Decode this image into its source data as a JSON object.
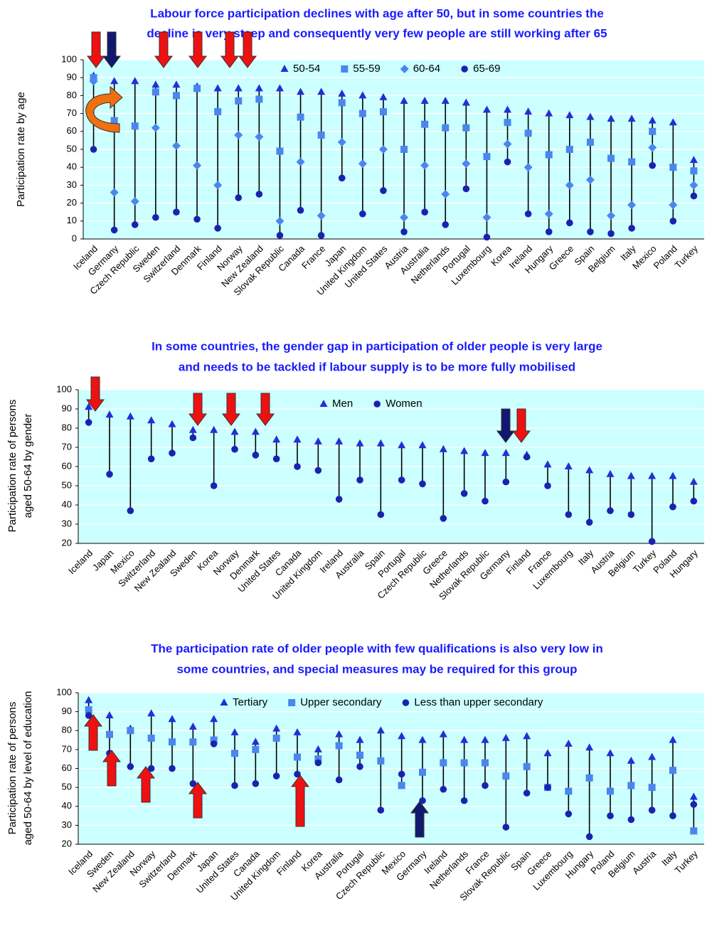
{
  "chart_data": [
    {
      "type": "dot-range",
      "title": [
        "Labour force participation declines with age after 50, but in some countries the",
        "decline is very steep and consequently very few people are still working after 65"
      ],
      "y_label": "Participation rate by age",
      "categories": [
        "Iceland",
        "Germany",
        "Czech Republic",
        "Sweden",
        "Switzerland",
        "Denmark",
        "Finland",
        "Norway",
        "New Zealand",
        "Slovak Republic",
        "Canada",
        "France",
        "Japan",
        "United Kingdom",
        "United States",
        "Austria",
        "Australia",
        "Netherlands",
        "Portugal",
        "Luxembourg",
        "Korea",
        "Ireland",
        "Hungary",
        "Greece",
        "Spain",
        "Belgium",
        "Italy",
        "Mexico",
        "Poland",
        "Turkey"
      ],
      "series": [
        {
          "name": "50-54",
          "color": "#2030d8",
          "marker": "triangle",
          "values": [
            91,
            88,
            88,
            86,
            86,
            85,
            84,
            84,
            84,
            84,
            82,
            82,
            81,
            80,
            79,
            77,
            77,
            77,
            76,
            72,
            72,
            71,
            70,
            69,
            68,
            67,
            67,
            66,
            65,
            44
          ]
        },
        {
          "name": "55-59",
          "color": "#4a86ee",
          "marker": "square",
          "values": [
            90,
            66,
            63,
            82,
            80,
            84,
            71,
            77,
            78,
            49,
            68,
            58,
            76,
            70,
            71,
            50,
            64,
            62,
            62,
            46,
            65,
            59,
            47,
            50,
            54,
            45,
            43,
            60,
            40,
            38
          ]
        },
        {
          "name": "60-64",
          "color": "#4a86ee",
          "marker": "diamond",
          "values": [
            88,
            26,
            21,
            62,
            52,
            41,
            30,
            58,
            57,
            10,
            43,
            13,
            54,
            42,
            50,
            12,
            41,
            25,
            42,
            12,
            53,
            40,
            14,
            30,
            33,
            13,
            19,
            51,
            19,
            30
          ]
        },
        {
          "name": "65-69",
          "color": "#1a22b0",
          "marker": "circle",
          "values": [
            50,
            5,
            8,
            12,
            15,
            11,
            6,
            23,
            25,
            2,
            16,
            2,
            34,
            14,
            27,
            4,
            15,
            8,
            28,
            1,
            43,
            14,
            4,
            9,
            4,
            3,
            6,
            41,
            10,
            24
          ]
        }
      ],
      "ylim": [
        0,
        100
      ],
      "yticks": [
        0,
        10,
        20,
        30,
        40,
        50,
        60,
        70,
        80,
        90,
        100
      ],
      "grid": true,
      "legend": "top"
    },
    {
      "type": "dot-range",
      "title": [
        "In some countries, the gender gap in participation of older people is very large",
        "and needs to be tackled if labour supply is to be more fully mobilised"
      ],
      "y_label": [
        "Participation rate of persons",
        "aged 50-64 by gender"
      ],
      "categories": [
        "Iceland",
        "Japan",
        "Mexico",
        "Switzerland",
        "New Zealand",
        "Sweden",
        "Korea",
        "Norway",
        "Denmark",
        "United States",
        "Canada",
        "United Kingdom",
        "Ireland",
        "Australia",
        "Spain",
        "Portugal",
        "Czech Republic",
        "Greece",
        "Netherlands",
        "Slovak Republic",
        "Germany",
        "Finland",
        "France",
        "Luxembourg",
        "Italy",
        "Austria",
        "Belgium",
        "Turkey",
        "Poland",
        "Hungary"
      ],
      "series": [
        {
          "name": "Men",
          "color": "#2030d8",
          "marker": "triangle",
          "values": [
            91,
            87,
            86,
            84,
            82,
            79,
            79,
            78,
            78,
            74,
            74,
            73,
            73,
            72,
            72,
            71,
            71,
            69,
            68,
            67,
            67,
            66,
            61,
            60,
            58,
            56,
            55,
            55,
            55,
            52
          ]
        },
        {
          "name": "Women",
          "color": "#1a22b0",
          "marker": "circle",
          "values": [
            83,
            56,
            37,
            64,
            67,
            75,
            50,
            69,
            66,
            64,
            60,
            58,
            43,
            53,
            35,
            53,
            51,
            33,
            46,
            42,
            52,
            65,
            50,
            35,
            31,
            37,
            35,
            21,
            39,
            42
          ]
        }
      ],
      "ylim": [
        20,
        100
      ],
      "yticks": [
        20,
        30,
        40,
        50,
        60,
        70,
        80,
        90,
        100
      ],
      "grid": true,
      "legend": "top"
    },
    {
      "type": "dot-range",
      "title": [
        "The participation rate of older people with few qualifications is also very low in",
        "some countries, and special measures may be required for this group"
      ],
      "y_label": [
        "Participation rate of persons",
        "aged 50-64 by level of education"
      ],
      "categories": [
        "Iceland",
        "Sweden",
        "New Zealand",
        "Norway",
        "Switzerland",
        "Denmark",
        "Japan",
        "United States",
        "Canada",
        "United Kingdom",
        "Finland",
        "Korea",
        "Australia",
        "Portugal",
        "Czech Republic",
        "Mexico",
        "Germany",
        "Ireland",
        "Netherlands",
        "France",
        "Slovak Republic",
        "Spain",
        "Greece",
        "Luxembourg",
        "Hungary",
        "Poland",
        "Belgium",
        "Austria",
        "Italy",
        "Turkey"
      ],
      "series": [
        {
          "name": "Tertiary",
          "color": "#2030d8",
          "marker": "triangle",
          "values": [
            96,
            88,
            81,
            89,
            86,
            82,
            86,
            79,
            74,
            81,
            79,
            70,
            78,
            75,
            80,
            77,
            75,
            78,
            75,
            75,
            76,
            77,
            68,
            73,
            71,
            68,
            64,
            66,
            75,
            45
          ]
        },
        {
          "name": "Upper secondary",
          "color": "#4a86ee",
          "marker": "square",
          "values": [
            91,
            78,
            80,
            76,
            74,
            74,
            75,
            68,
            70,
            76,
            66,
            65,
            72,
            67,
            64,
            51,
            58,
            63,
            63,
            63,
            56,
            61,
            50,
            48,
            55,
            48,
            51,
            50,
            59,
            27
          ]
        },
        {
          "name": "Less than upper secondary",
          "color": "#1a22b0",
          "marker": "circle",
          "values": [
            88,
            68,
            61,
            60,
            60,
            52,
            73,
            51,
            52,
            56,
            57,
            63,
            54,
            61,
            38,
            57,
            43,
            49,
            43,
            51,
            29,
            47,
            50,
            36,
            24,
            35,
            33,
            38,
            35,
            41
          ]
        }
      ],
      "ylim": [
        20,
        100
      ],
      "yticks": [
        20,
        30,
        40,
        50,
        60,
        70,
        80,
        90,
        100
      ],
      "grid": true,
      "legend": "top"
    }
  ]
}
